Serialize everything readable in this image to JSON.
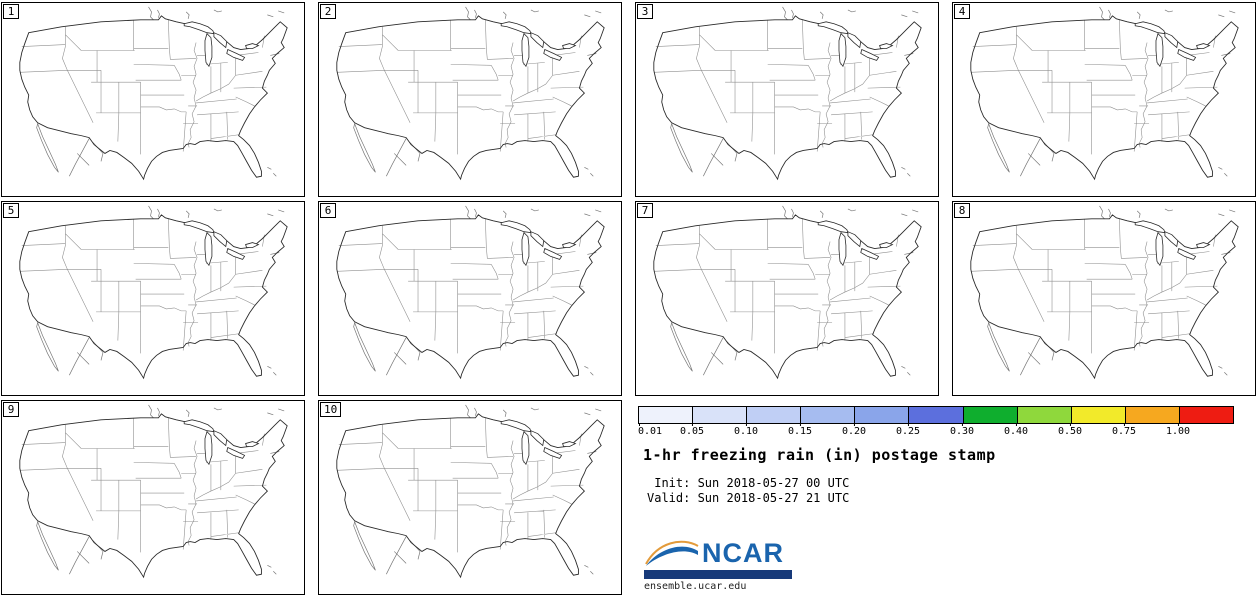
{
  "panels": [
    {
      "label": "1"
    },
    {
      "label": "2"
    },
    {
      "label": "3"
    },
    {
      "label": "4"
    },
    {
      "label": "5"
    },
    {
      "label": "6"
    },
    {
      "label": "7"
    },
    {
      "label": "8"
    },
    {
      "label": "9"
    },
    {
      "label": "10"
    }
  ],
  "colorbar": {
    "ticks": [
      "0.01",
      "0.05",
      "0.10",
      "0.15",
      "0.20",
      "0.25",
      "0.30",
      "0.40",
      "0.50",
      "0.75",
      "1.00"
    ],
    "segments": [
      "#eef2fc",
      "#d9e2f9",
      "#c0cff5",
      "#a6bcf0",
      "#8aa5ea",
      "#5c6fdd",
      "#0fae2e",
      "#8fd83c",
      "#f2ea2a",
      "#f6a81f",
      "#ee1c12"
    ]
  },
  "info": {
    "title": "1-hr freezing rain (in) postage stamp",
    "init": " Init: Sun 2018-05-27 00 UTC",
    "valid": "Valid: Sun 2018-05-27 21 UTC"
  },
  "logo": {
    "name": "NCAR",
    "site": "ensemble.ucar.edu",
    "ncar_blue": "#1a64ad",
    "bar_navy": "#173a7a",
    "swoosh_orange": "#e39b3b"
  }
}
